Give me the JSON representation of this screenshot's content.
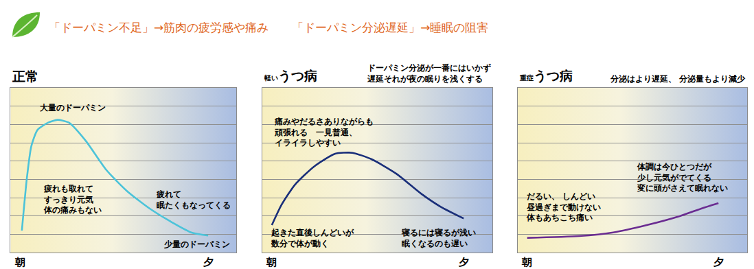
{
  "header": "「ドーパミン不足」→筋肉の疲労感や痛み　　「ドーパミン分泌遅延」→睡眠の阻害",
  "chart_data": [
    {
      "type": "line",
      "title": "正常",
      "color": "#4cc3d9",
      "x": [
        0.1,
        0.37,
        0.6,
        0.93,
        1.5,
        2.0,
        2.6,
        3.5,
        4.6,
        5.7,
        6.9,
        8.0,
        9.1,
        10
      ],
      "values": [
        1.2,
        4.1,
        5.8,
        6.7,
        7.1,
        7.25,
        7.1,
        6.1,
        4.5,
        3.35,
        2.4,
        1.7,
        1.1,
        0.93
      ],
      "xlim": [
        -0.5,
        11.5
      ],
      "xticks": [
        {
          "value": 0,
          "label": "朝"
        },
        {
          "value": 10,
          "label": "夕"
        }
      ],
      "ylim": [
        0,
        9
      ],
      "yticks": [
        1,
        2,
        3,
        4,
        5,
        6,
        7,
        8
      ],
      "grid": true,
      "tick_labels": "x",
      "annotations": [
        {
          "text": "大量のドーパミン",
          "x": 2.8,
          "y": 7.9
        },
        {
          "text": "疲れも取れて\nすっきり元気\n体の痛みもない",
          "x": 2.8,
          "y": 2.9
        },
        {
          "text": "疲れて\n眠たくもなってくる",
          "x": 9.2,
          "y": 2.9
        },
        {
          "text": "少量のドーパミン",
          "x": 9.4,
          "y": 0.45
        }
      ]
    },
    {
      "type": "line",
      "title_prefix": "軽い",
      "title": "うつ病",
      "subtitle": "ドーパミン分泌が一番にはいかず\n遅延それが夜の眠りを浅くする",
      "color": "#1a2f7a",
      "x": [
        0,
        0.5,
        1.2,
        2.2,
        3.3,
        4.2,
        5.2,
        6.5,
        7.8,
        8.8,
        10
      ],
      "values": [
        1.5,
        2.6,
        3.7,
        4.7,
        5.4,
        5.45,
        5.1,
        4.3,
        3.2,
        2.5,
        1.86
      ],
      "xlim": [
        -0.5,
        11.5
      ],
      "xticks": [
        {
          "value": 0,
          "label": "朝"
        },
        {
          "value": 10,
          "label": "夕"
        }
      ],
      "ylim": [
        0,
        9
      ],
      "yticks": [
        1,
        2,
        3,
        4,
        5,
        6,
        7,
        8
      ],
      "grid": true,
      "tick_labels": "x",
      "annotations": [
        {
          "text": "痛みやだるさありながらも\n頑張れる　一見普通、\nイライラしやすい",
          "x": 2.7,
          "y": 6.6
        },
        {
          "text": "起きた直後しんどいが\n数分で体が動く",
          "x": 2.1,
          "y": 0.8
        },
        {
          "text": "寝るには寝るが浅い\n眠くなるのも遅い",
          "x": 8.7,
          "y": 0.8
        }
      ]
    },
    {
      "type": "line",
      "title_prefix": "重症",
      "title": "うつ病",
      "subtitle": "分泌はより遅延、 分泌量もより減少",
      "color": "#6a2c91",
      "x": [
        0,
        2.7,
        4.5,
        6.25,
        8.0,
        9.1,
        10
      ],
      "values": [
        0.8,
        0.9,
        1.1,
        1.5,
        2.0,
        2.4,
        2.7
      ],
      "xlim": [
        -0.5,
        11.5
      ],
      "xticks": [
        {
          "value": 0,
          "label": "朝"
        },
        {
          "value": 10,
          "label": "夕"
        }
      ],
      "ylim": [
        0,
        9
      ],
      "yticks": [
        1,
        2,
        3,
        4,
        5,
        6,
        7,
        8
      ],
      "grid": true,
      "tick_labels": "x",
      "annotations": [
        {
          "text": "だるい、 しんどい\n昼過ぎまで動けない\n体もあちこち痛い",
          "x": 1.9,
          "y": 2.5
        },
        {
          "text": "体調は今ひとつだが\n少し元気がでてくる\n変に頭がさえて眠れない",
          "x": 8.1,
          "y": 4.1
        }
      ]
    }
  ]
}
